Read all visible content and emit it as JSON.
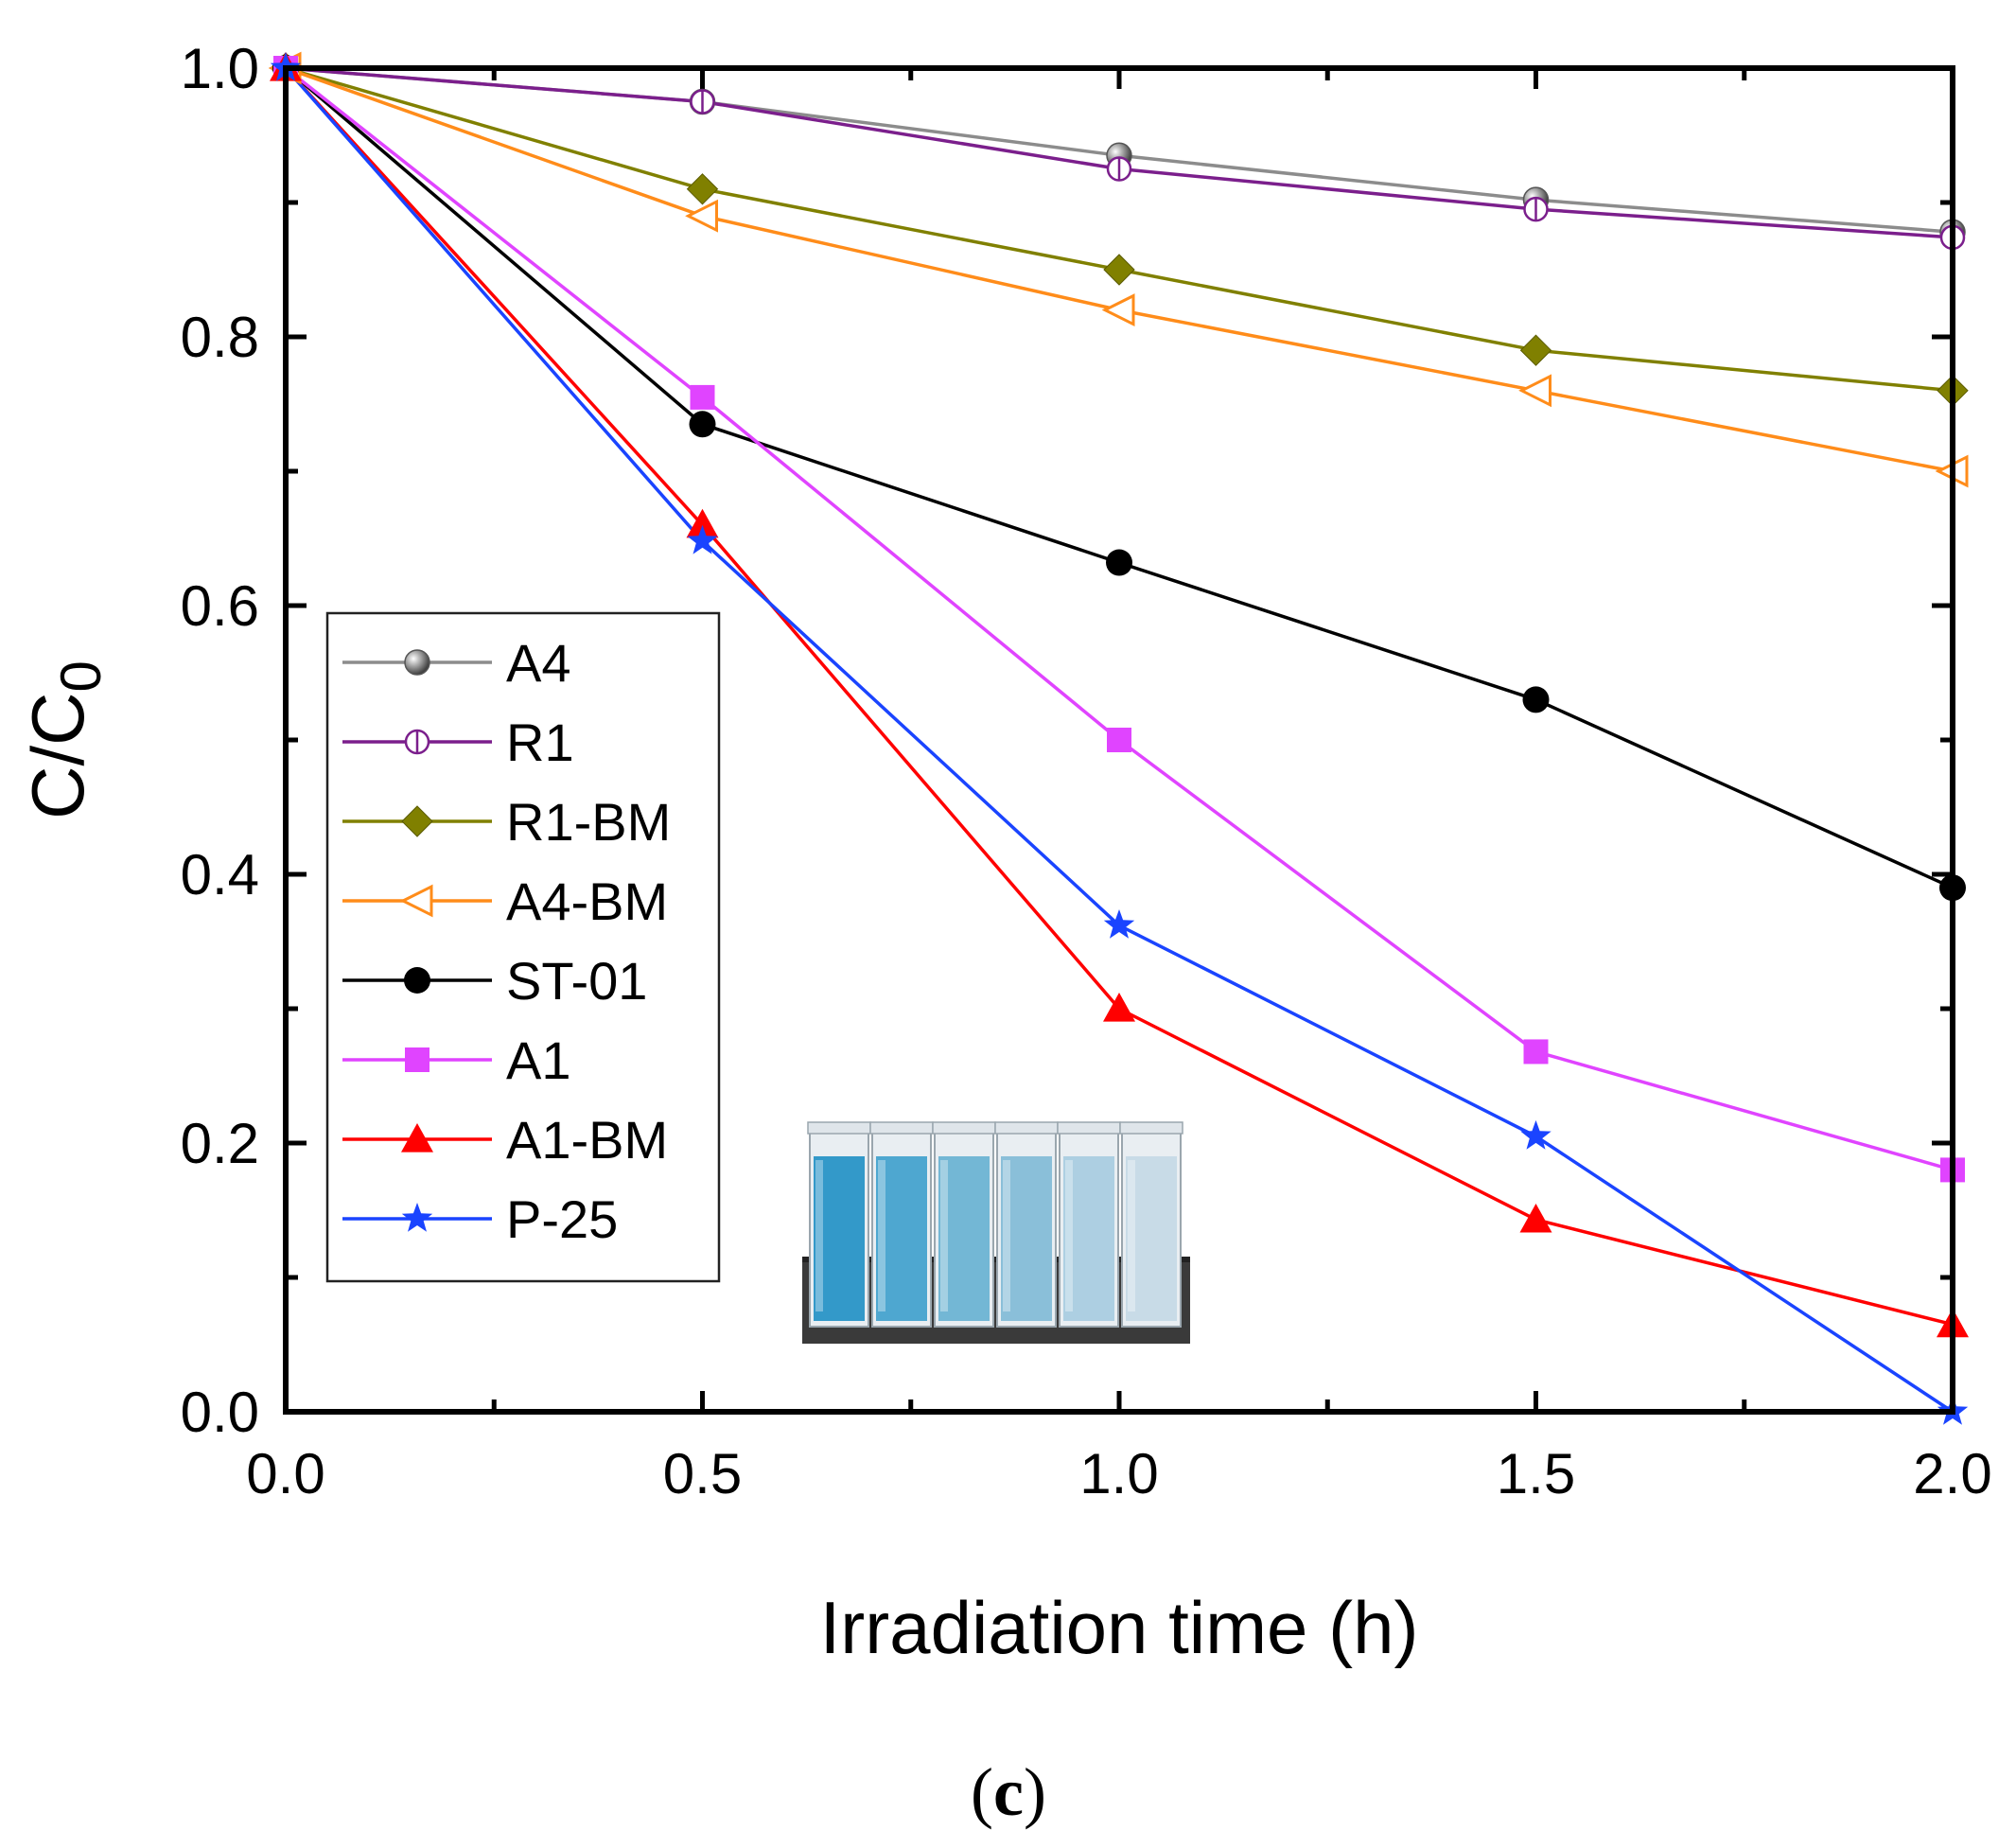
{
  "chart_data": {
    "type": "line",
    "title": "",
    "xlabel": "Irradiation time (h)",
    "ylabel_main": "C/C",
    "ylabel_sub": "0",
    "xlim": [
      0.0,
      2.0
    ],
    "ylim": [
      0.0,
      1.0
    ],
    "x": [
      0.0,
      0.5,
      1.0,
      1.5,
      2.0
    ],
    "x_ticks": [
      "0.0",
      "0.5",
      "1.0",
      "1.5",
      "2.0"
    ],
    "x_tick_values": [
      0.0,
      0.5,
      1.0,
      1.5,
      2.0
    ],
    "y_ticks": [
      "0.0",
      "0.2",
      "0.4",
      "0.6",
      "0.8",
      "1.0"
    ],
    "y_tick_values": [
      0.0,
      0.2,
      0.4,
      0.6,
      0.8,
      1.0
    ],
    "legend_position": "left-middle",
    "series": [
      {
        "name": "A4",
        "color": "#8c8c8c",
        "marker": "sphere",
        "values": [
          1.0,
          0.975,
          0.935,
          0.902,
          0.878
        ]
      },
      {
        "name": "R1",
        "color": "#7b1f8c",
        "marker": "circle-bar",
        "values": [
          1.0,
          0.975,
          0.925,
          0.895,
          0.874
        ]
      },
      {
        "name": "R1-BM",
        "color": "#808000",
        "marker": "diamond",
        "values": [
          1.0,
          0.91,
          0.85,
          0.79,
          0.76
        ]
      },
      {
        "name": "A4-BM",
        "color": "#ff8c1a",
        "marker": "triangle-left",
        "values": [
          1.0,
          0.89,
          0.82,
          0.76,
          0.7
        ]
      },
      {
        "name": "ST-01",
        "color": "#000000",
        "marker": "circle",
        "values": [
          1.0,
          0.735,
          0.632,
          0.53,
          0.39
        ]
      },
      {
        "name": "A1",
        "color": "#e044ff",
        "marker": "square",
        "values": [
          1.0,
          0.755,
          0.5,
          0.268,
          0.18
        ]
      },
      {
        "name": "A1-BM",
        "color": "#ff0000",
        "marker": "triangle-up",
        "values": [
          1.0,
          0.66,
          0.3,
          0.143,
          0.065
        ]
      },
      {
        "name": "P-25",
        "color": "#1a44ff",
        "marker": "star",
        "values": [
          1.0,
          0.648,
          0.362,
          0.205,
          0.0
        ]
      }
    ],
    "inset_image": "photo-of-six-blue-cuvettes",
    "panel_label_open": "(",
    "panel_label_letter": "c",
    "panel_label_close": ")"
  }
}
